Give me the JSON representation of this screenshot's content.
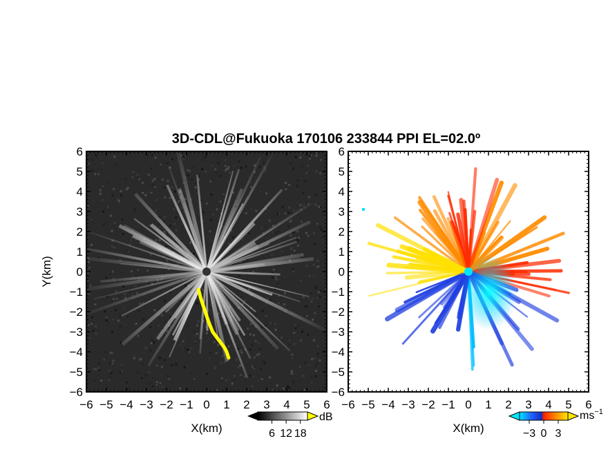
{
  "chart_data": [
    {
      "type": "heatmap",
      "panel": "left",
      "title": "3D-CDL@Fukuoka 170106 233844 PPI EL=02.0º",
      "xlabel": "X(km)",
      "ylabel": "Y(km)",
      "xlim": [
        -6,
        6
      ],
      "ylim": [
        -6,
        6
      ],
      "ticks": [
        "−6",
        "−5",
        "−4",
        "−3",
        "−2",
        "−1",
        "0",
        "1",
        "2",
        "3",
        "4",
        "5",
        "6"
      ],
      "colorbar": {
        "unit": "dB",
        "tick_labels": [
          "6",
          "12",
          "18"
        ],
        "values": [
          6,
          12,
          18
        ],
        "range": [
          0,
          21
        ]
      },
      "colors": {
        "background": "#2a2a2a",
        "beam": "#e8e8e8",
        "highlight": "#ffff00"
      },
      "highlight_trace": {
        "x": [
          -0.4,
          -0.3,
          -0.1,
          0.1,
          0.3,
          0.6,
          0.9,
          1.0,
          1.1
        ],
        "y": [
          -0.9,
          -1.3,
          -1.9,
          -2.5,
          -3.0,
          -3.4,
          -3.8,
          -4.0,
          -4.3
        ]
      }
    },
    {
      "type": "heatmap",
      "panel": "right",
      "xlabel": "X(km)",
      "xlim": [
        -6,
        6
      ],
      "ylim": [
        -6,
        6
      ],
      "ticks": [
        "−6",
        "−5",
        "−4",
        "−3",
        "−2",
        "−1",
        "0",
        "1",
        "2",
        "3",
        "4",
        "5",
        "6"
      ],
      "colorbar": {
        "unit": "ms",
        "unit_exponent": "−1",
        "tick_labels": [
          "−3",
          "0",
          "3"
        ],
        "values": [
          -3,
          0,
          3
        ],
        "range": [
          -5,
          5
        ]
      },
      "colors": {
        "neg_far": "#00bfff",
        "neg_mid": "#1f3fe0",
        "zero": "#ff2a00",
        "pos_mid": "#ff8c00",
        "pos_far": "#ffe000"
      }
    }
  ]
}
